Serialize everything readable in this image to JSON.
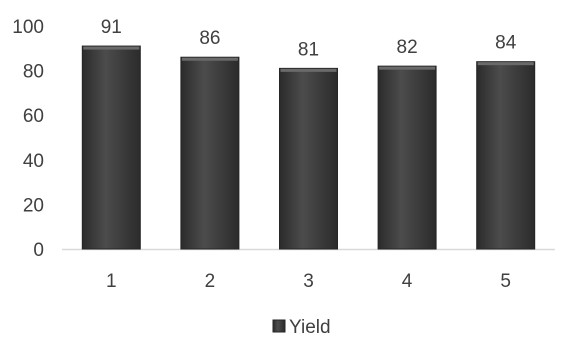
{
  "chart_data": {
    "type": "bar",
    "categories": [
      "1",
      "2",
      "3",
      "4",
      "5"
    ],
    "series": [
      {
        "name": "Yield",
        "values": [
          91,
          86,
          81,
          82,
          84
        ]
      }
    ],
    "title": "",
    "xlabel": "",
    "ylabel": "",
    "ylim": [
      0,
      100
    ],
    "yticks": [
      "0",
      "20",
      "40",
      "60",
      "80",
      "100"
    ],
    "grid": false,
    "legend_position": "bottom",
    "colors": {
      "bar": "#4a4a4a",
      "bar_dark": "#262626",
      "axis": "#d9d9d9",
      "text": "#404040"
    }
  }
}
